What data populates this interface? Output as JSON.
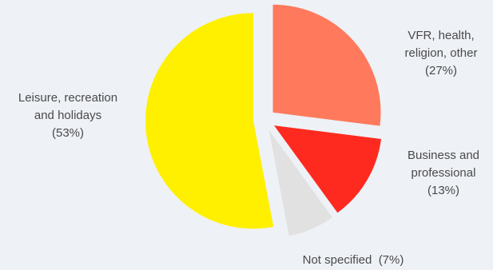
{
  "chart_data": {
    "type": "pie",
    "title": "",
    "exploded": true,
    "slices": [
      {
        "key": "vfr",
        "label": [
          "VFR, health,",
          "religion, other"
        ],
        "percent_label": "(27%)",
        "value": 27,
        "color": "#ff7a5c"
      },
      {
        "key": "business",
        "label": [
          "Business and",
          "professional"
        ],
        "percent_label": "(13%)",
        "value": 13,
        "color": "#ff2a1f"
      },
      {
        "key": "notspecified",
        "label": [
          "Not specified"
        ],
        "percent_label": "(7%)",
        "value": 7,
        "color": "#e1e1e1"
      },
      {
        "key": "leisure",
        "label": [
          "Leisure, recreation",
          "and holidays"
        ],
        "percent_label": "(53%)",
        "value": 53,
        "color": "#fff000"
      }
    ]
  },
  "colors": {
    "background": "#eef1f6",
    "label_text": "#4a4a4a"
  }
}
